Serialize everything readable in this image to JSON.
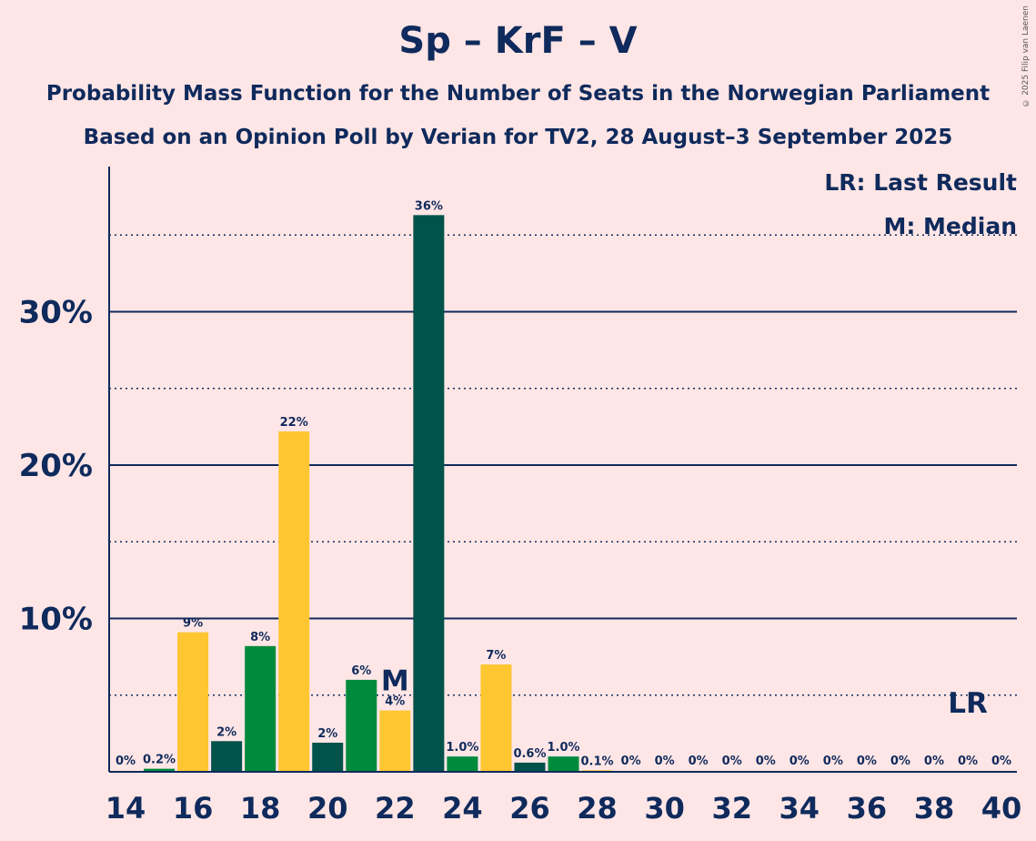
{
  "title": "Sp – KrF – V",
  "subtitle_line1": "Probability Mass Function for the Number of Seats in the Norwegian Parliament",
  "subtitle_line2": "Based on an Opinion Poll by Verian for TV2, 28 August–3 September 2025",
  "copyright": "© 2025 Filip van Laenen",
  "legend": {
    "last_result": "LR: Last Result",
    "median": "M: Median"
  },
  "colors": {
    "background": "#ffe6e6",
    "text": "#0f2a5c",
    "dark_green": "#00524a",
    "green": "#008a3c",
    "yellow": "#fec631"
  },
  "chart_data": {
    "type": "bar",
    "xlabel": "",
    "ylabel": "",
    "ylim": [
      0,
      38
    ],
    "x_ticks": [
      14,
      16,
      18,
      20,
      22,
      24,
      26,
      28,
      30,
      32,
      34,
      36,
      38,
      40
    ],
    "y_ticks_solid": [
      {
        "value": 10,
        "label": "10%"
      },
      {
        "value": 20,
        "label": "20%"
      },
      {
        "value": 30,
        "label": "30%"
      }
    ],
    "y_gridlines_dotted": [
      5,
      15,
      25,
      35
    ],
    "median_seat": 22,
    "median_marker": "M",
    "last_result_seat": 39,
    "last_result_marker": "LR",
    "bars": [
      {
        "seat": 14,
        "value": 0,
        "label": "0%",
        "color": "dark_green"
      },
      {
        "seat": 15,
        "value": 0.2,
        "label": "0.2%",
        "color": "green"
      },
      {
        "seat": 16,
        "value": 9.1,
        "label": "9%",
        "color": "yellow"
      },
      {
        "seat": 17,
        "value": 2.0,
        "label": "2%",
        "color": "dark_green"
      },
      {
        "seat": 18,
        "value": 8.2,
        "label": "8%",
        "color": "green"
      },
      {
        "seat": 19,
        "value": 22.2,
        "label": "22%",
        "color": "yellow"
      },
      {
        "seat": 20,
        "value": 1.9,
        "label": "2%",
        "color": "dark_green"
      },
      {
        "seat": 21,
        "value": 6.0,
        "label": "6%",
        "color": "green"
      },
      {
        "seat": 22,
        "value": 4.0,
        "label": "4%",
        "color": "yellow"
      },
      {
        "seat": 23,
        "value": 36.3,
        "label": "36%",
        "color": "dark_green"
      },
      {
        "seat": 24,
        "value": 1.0,
        "label": "1.0%",
        "color": "green"
      },
      {
        "seat": 25,
        "value": 7.0,
        "label": "7%",
        "color": "yellow"
      },
      {
        "seat": 26,
        "value": 0.6,
        "label": "0.6%",
        "color": "dark_green"
      },
      {
        "seat": 27,
        "value": 1.0,
        "label": "1.0%",
        "color": "green"
      },
      {
        "seat": 28,
        "value": 0.1,
        "label": "0.1%",
        "color": "yellow"
      },
      {
        "seat": 29,
        "value": 0,
        "label": "0%",
        "color": "dark_green"
      },
      {
        "seat": 30,
        "value": 0,
        "label": "0%",
        "color": "green"
      },
      {
        "seat": 31,
        "value": 0,
        "label": "0%",
        "color": "yellow"
      },
      {
        "seat": 32,
        "value": 0,
        "label": "0%",
        "color": "dark_green"
      },
      {
        "seat": 33,
        "value": 0,
        "label": "0%",
        "color": "green"
      },
      {
        "seat": 34,
        "value": 0,
        "label": "0%",
        "color": "yellow"
      },
      {
        "seat": 35,
        "value": 0,
        "label": "0%",
        "color": "dark_green"
      },
      {
        "seat": 36,
        "value": 0,
        "label": "0%",
        "color": "green"
      },
      {
        "seat": 37,
        "value": 0,
        "label": "0%",
        "color": "yellow"
      },
      {
        "seat": 38,
        "value": 0,
        "label": "0%",
        "color": "dark_green"
      },
      {
        "seat": 39,
        "value": 0,
        "label": "0%",
        "color": "green"
      },
      {
        "seat": 40,
        "value": 0,
        "label": "0%",
        "color": "yellow"
      }
    ]
  }
}
